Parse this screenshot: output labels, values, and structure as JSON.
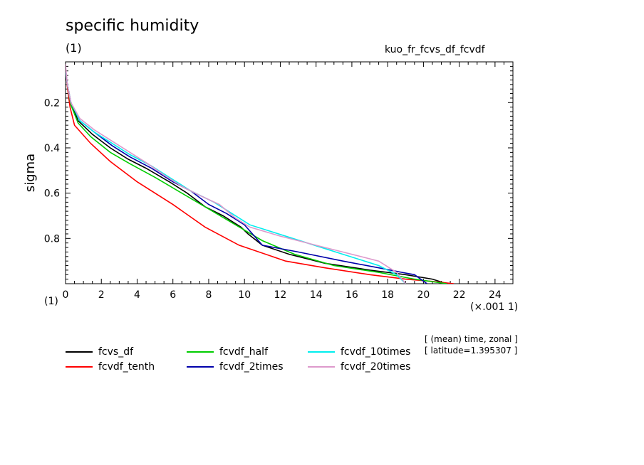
{
  "header": {
    "title": "specific humidity",
    "units": "(1)",
    "experiment": "kuo_fr_fcvs_df_fcvdf"
  },
  "axis_notes": {
    "x_left": "(1)",
    "x_scale": "(×.001 1)"
  },
  "footnotes": {
    "line1": "[ (mean) time, zonal ]",
    "line2": "[ latitude=1.395307 ]"
  },
  "chart_data": {
    "type": "line",
    "title": "specific humidity",
    "xlabel": "",
    "ylabel": "sigma",
    "xlim": [
      0,
      25
    ],
    "ylim": [
      1.0,
      0.02
    ],
    "x_ticks": [
      0,
      2,
      4,
      6,
      8,
      10,
      12,
      14,
      16,
      18,
      20,
      22,
      24
    ],
    "y_ticks": [
      0.2,
      0.4,
      0.6,
      0.8
    ],
    "x_tick_labels": [
      "0",
      "2",
      "4",
      "6",
      "8",
      "10",
      "12",
      "14",
      "16",
      "18",
      "20",
      "22",
      "24"
    ],
    "y_tick_labels": [
      "0.2",
      "0.4",
      "0.6",
      "0.8"
    ],
    "series": [
      {
        "name": "fcvs_df",
        "color": "#000000",
        "x": [
          0.0,
          0.1,
          0.3,
          0.7,
          1.5,
          2.5,
          3.5,
          4.5,
          5.8,
          6.8,
          7.8,
          8.8,
          9.8,
          10.2,
          11.0,
          12.5,
          14.5,
          17.0,
          19.0,
          20.5,
          21.3
        ],
        "y": [
          0.05,
          0.12,
          0.2,
          0.28,
          0.34,
          0.4,
          0.45,
          0.49,
          0.55,
          0.6,
          0.66,
          0.7,
          0.75,
          0.78,
          0.83,
          0.87,
          0.91,
          0.94,
          0.96,
          0.98,
          1.0
        ]
      },
      {
        "name": "fcvdf_tenth",
        "color": "#ff0000",
        "x": [
          0.0,
          0.1,
          0.25,
          0.5,
          1.4,
          2.5,
          4.0,
          6.0,
          7.8,
          9.7,
          12.3,
          14.5,
          17.0,
          19.0,
          20.5,
          21.7
        ],
        "y": [
          0.05,
          0.13,
          0.22,
          0.3,
          0.38,
          0.46,
          0.55,
          0.65,
          0.75,
          0.83,
          0.9,
          0.93,
          0.96,
          0.98,
          0.99,
          1.0
        ]
      },
      {
        "name": "fcvdf_half",
        "color": "#00cc00",
        "x": [
          0.0,
          0.1,
          0.3,
          0.7,
          1.4,
          2.5,
          3.6,
          5.0,
          6.5,
          8.0,
          9.5,
          11.0,
          12.8,
          15.0,
          17.5,
          19.5,
          21.3
        ],
        "y": [
          0.05,
          0.12,
          0.21,
          0.29,
          0.35,
          0.42,
          0.47,
          0.53,
          0.6,
          0.67,
          0.74,
          0.81,
          0.87,
          0.92,
          0.95,
          0.98,
          1.0
        ]
      },
      {
        "name": "fcvdf_2times",
        "color": "#0000aa",
        "x": [
          0.0,
          0.1,
          0.3,
          0.8,
          1.6,
          2.6,
          3.6,
          4.8,
          6.0,
          7.0,
          8.0,
          9.0,
          10.0,
          11.0,
          13.0,
          15.5,
          17.5,
          18.8,
          19.5,
          20.2
        ],
        "y": [
          0.05,
          0.12,
          0.2,
          0.28,
          0.33,
          0.39,
          0.44,
          0.49,
          0.55,
          0.59,
          0.65,
          0.69,
          0.74,
          0.83,
          0.86,
          0.9,
          0.93,
          0.95,
          0.96,
          1.0
        ]
      },
      {
        "name": "fcvdf_10times",
        "color": "#00eeee",
        "x": [
          0.0,
          0.1,
          0.3,
          0.8,
          1.6,
          2.6,
          3.6,
          4.8,
          5.8,
          7.0,
          8.3,
          9.3,
          10.3,
          11.5,
          13.5,
          15.5,
          17.5,
          18.5,
          19.0
        ],
        "y": [
          0.05,
          0.12,
          0.2,
          0.28,
          0.33,
          0.38,
          0.43,
          0.48,
          0.53,
          0.59,
          0.64,
          0.69,
          0.74,
          0.77,
          0.82,
          0.87,
          0.92,
          0.96,
          1.0
        ]
      },
      {
        "name": "fcvdf_20times",
        "color": "#dd99cc",
        "x": [
          0.0,
          0.05,
          0.1,
          0.3,
          0.8,
          1.6,
          2.6,
          3.6,
          4.6,
          5.5,
          6.5,
          7.5,
          8.6,
          9.5,
          10.3,
          12.0,
          14.5,
          17.5,
          18.5,
          19.0
        ],
        "y": [
          0.03,
          0.08,
          0.12,
          0.2,
          0.27,
          0.32,
          0.37,
          0.42,
          0.47,
          0.52,
          0.57,
          0.61,
          0.65,
          0.71,
          0.75,
          0.79,
          0.84,
          0.9,
          0.95,
          1.0
        ]
      }
    ]
  }
}
